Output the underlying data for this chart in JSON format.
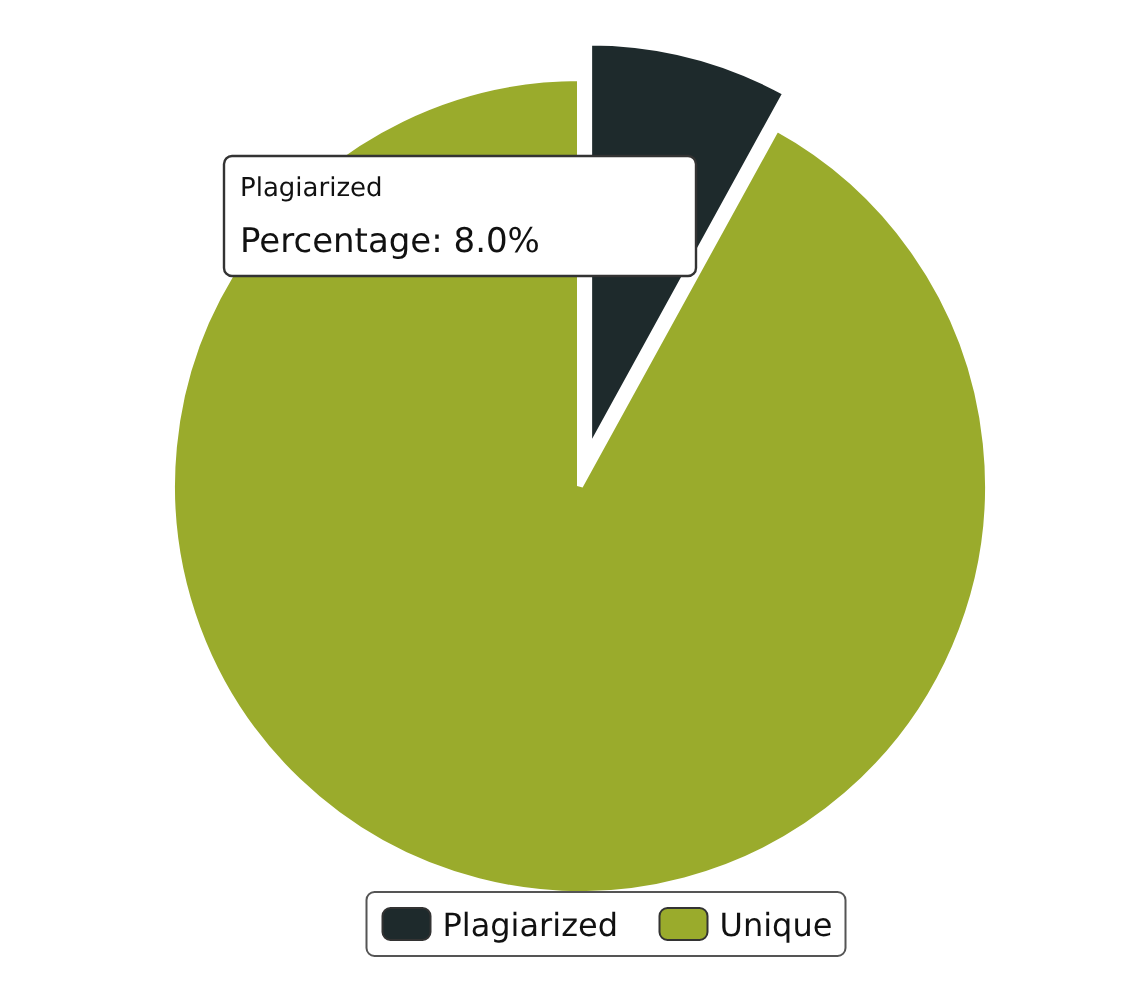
{
  "chart_data": {
    "type": "pie",
    "categories": [
      "Plagiarized",
      "Unique"
    ],
    "values": [
      8,
      92
    ],
    "colors": [
      "#1e2a2c",
      "#9aab2c"
    ],
    "legend": "bottom",
    "annotations": [
      "Plagiarized",
      "Percentage: 8.0%"
    ]
  }
}
